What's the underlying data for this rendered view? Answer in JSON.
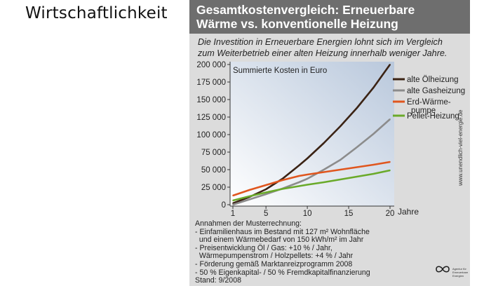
{
  "slide_title": "Wirtschaftlichkeit",
  "figure": {
    "title": "Gesamtkostenvergleich: Erneuerbare\nWärme vs. konventionelle Heizung",
    "subtitle": "Die Investition in Erneuerbare Energien lohnt sich im Vergleich\nzum Weiterbetrieb einer alten Heizung innerhalb weniger Jahre.",
    "notes": [
      "Annahmen der Musterrechnung:",
      "- Einfamilienhaus im Bestand mit 127 m² Wohnfläche",
      "  und einem Wärmebedarf von 150 kWh/m² im Jahr",
      "- Preisentwicklung Öl / Gas: +10 % / Jahr,",
      "  Wärmepumpenstrom / Holzpellets: +4 % / Jahr",
      "- Förderung gemäß Marktanreizprogramm 2008",
      "- 50 % Eigenkapital- / 50 % Fremdkapitalfinanzierung",
      "Stand: 9/2008"
    ],
    "website": "www.unendlich-viel-energie.de",
    "logo_text": "Agentur für Erneuerbare Energien"
  },
  "chart_data": {
    "type": "line",
    "title": "Summierte Kosten in Euro",
    "xlabel": "Jahre",
    "ylabel": "",
    "xlim": [
      1,
      20
    ],
    "ylim": [
      0,
      200000
    ],
    "x_ticks": [
      1,
      5,
      10,
      15,
      20
    ],
    "y_ticks": [
      0,
      25000,
      50000,
      75000,
      100000,
      125000,
      150000,
      175000,
      200000
    ],
    "y_tick_labels": [
      "0",
      "25 000",
      "50 000",
      "75 000",
      "100 000",
      "125 000",
      "150 000",
      "175 000",
      "200 000"
    ],
    "x": [
      1,
      3,
      5,
      7,
      9,
      10,
      12,
      14,
      16,
      18,
      20
    ],
    "series": [
      {
        "name": "alte Ölheizung",
        "color": "#3b2314",
        "values": [
          2000,
          11000,
          22000,
          37000,
          56000,
          66000,
          88000,
          112000,
          138000,
          167000,
          200000
        ]
      },
      {
        "name": "alte Gasheizung",
        "color": "#8c8c8c",
        "values": [
          0,
          7500,
          15000,
          23000,
          32000,
          37000,
          50000,
          64000,
          82000,
          101000,
          122000
        ]
      },
      {
        "name": "Erd-Wärme-\npumpe",
        "color": "#e0561e",
        "values": [
          13000,
          21000,
          28000,
          35000,
          41000,
          43000,
          46500,
          50000,
          53500,
          57000,
          61000
        ]
      },
      {
        "name": "Pellet-Heizung",
        "color": "#6aaa2a",
        "values": [
          6000,
          12000,
          17500,
          22500,
          26500,
          28500,
          32000,
          36000,
          40000,
          44000,
          49000
        ]
      }
    ],
    "grid": false,
    "legend_position": "right"
  }
}
